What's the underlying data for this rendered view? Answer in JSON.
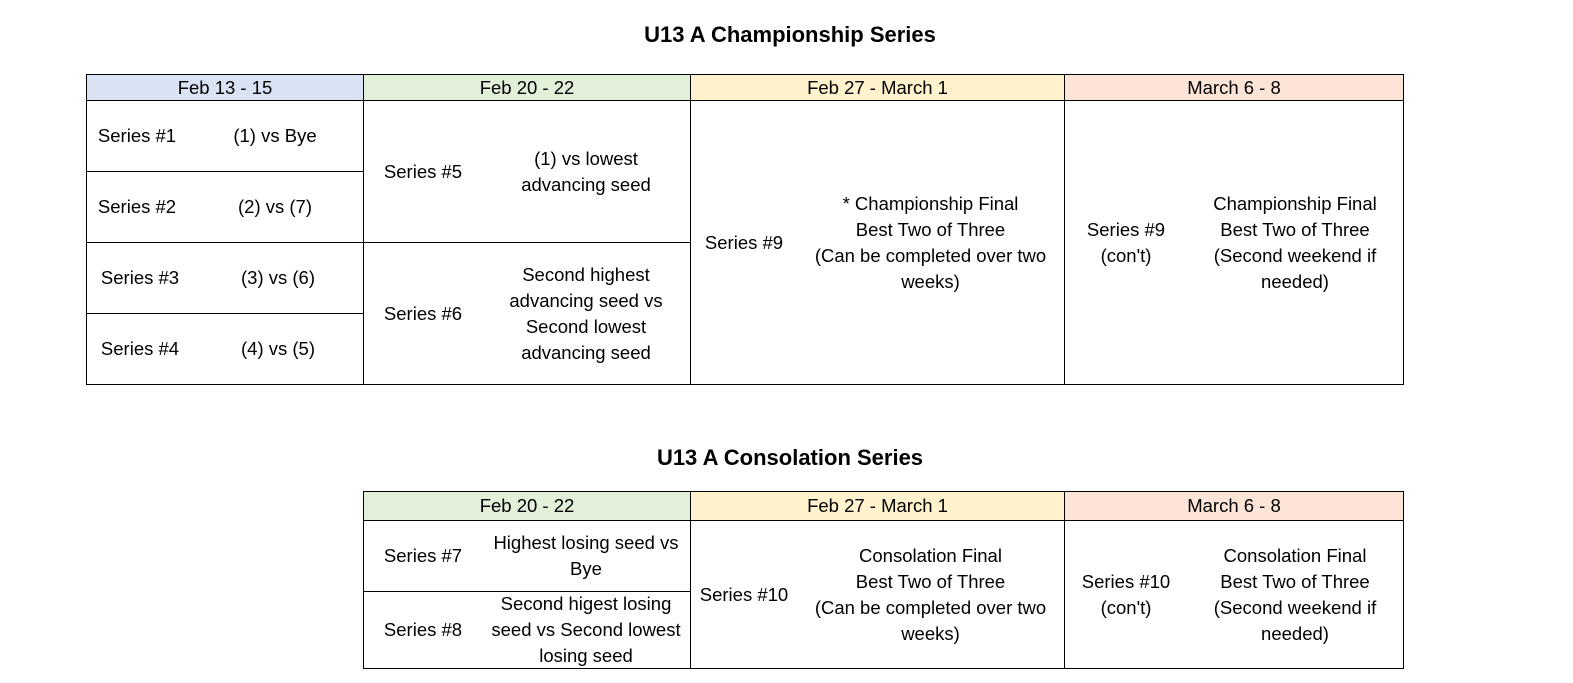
{
  "colors": {
    "feb13": "#dae3f3",
    "feb20": "#e2efd9",
    "feb27": "#fff2cc",
    "mar6": "#fce4d6"
  },
  "championship": {
    "title": "U13 A Championship Series",
    "headers": [
      "Feb 13 - 15",
      "Feb 20 - 22",
      "Feb 27 - March 1",
      "March 6 - 8"
    ],
    "round1": [
      {
        "label": "Series #1",
        "desc": "(1) vs Bye"
      },
      {
        "label": "Series #2",
        "desc": "(2) vs (7)"
      },
      {
        "label": "Series #3",
        "desc": "(3) vs (6)"
      },
      {
        "label": "Series #4",
        "desc": "(4) vs (5)"
      }
    ],
    "round2": [
      {
        "label": "Series #5",
        "desc": "(1) vs lowest advancing seed"
      },
      {
        "label": "Series #6",
        "desc": "Second highest advancing seed vs Second lowest advancing seed"
      }
    ],
    "final": {
      "label": "Series #9",
      "desc1": "* Championship Final",
      "desc2": "Best Two of Three",
      "desc3": "(Can be completed over two weeks)"
    },
    "final2": {
      "label1": "Series #9",
      "label2": "(con't)",
      "desc1": "Championship Final",
      "desc2": "Best Two of Three",
      "desc3": "(Second weekend if needed)"
    }
  },
  "consolation": {
    "title": "U13 A Consolation Series",
    "headers": [
      "Feb 20 - 22",
      "Feb 27 - March 1",
      "March 6 - 8"
    ],
    "round1": [
      {
        "label": "Series #7",
        "desc": "Highest losing seed vs Bye"
      },
      {
        "label": "Series #8",
        "desc": "Second higest losing seed vs Second lowest losing seed"
      }
    ],
    "final": {
      "label": "Series #10",
      "desc1": "Consolation Final",
      "desc2": "Best Two of Three",
      "desc3": "(Can be completed over two weeks)"
    },
    "final2": {
      "label1": "Series #10",
      "label2": "(con't)",
      "desc1": "Consolation Final",
      "desc2": "Best Two of Three",
      "desc3": "(Second weekend if needed)"
    }
  }
}
